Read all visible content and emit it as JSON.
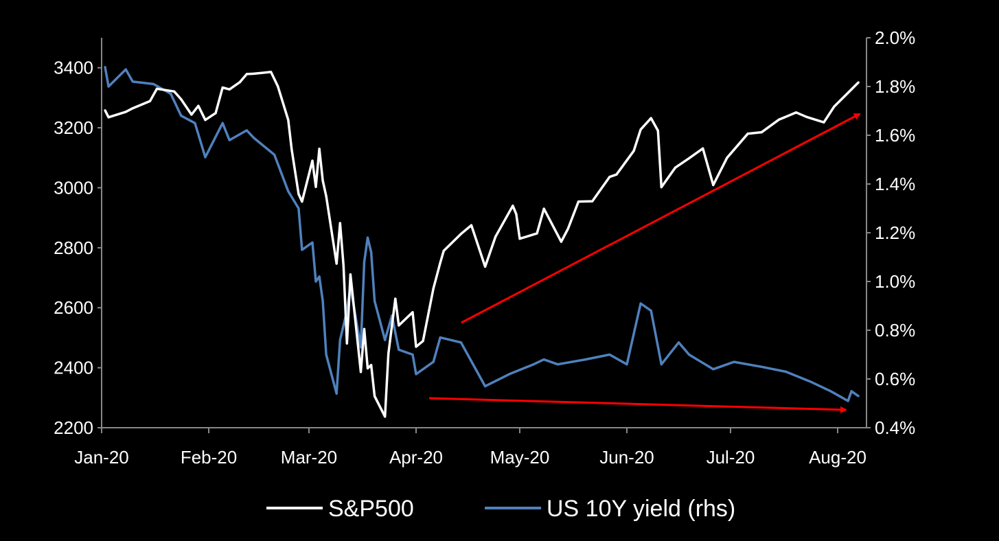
{
  "chart_data": {
    "type": "line",
    "title": "",
    "xlabel": "",
    "ylabel": "",
    "y2label": "",
    "x_ticks": [
      "Jan-20",
      "Feb-20",
      "Mar-20",
      "Apr-20",
      "May-20",
      "Jun-20",
      "Jul-20",
      "Aug-20"
    ],
    "x_tick_dates": [
      "2020-01-01",
      "2020-02-01",
      "2020-03-01",
      "2020-04-01",
      "2020-05-01",
      "2020-06-01",
      "2020-07-01",
      "2020-08-01"
    ],
    "ylim": [
      2200,
      3500
    ],
    "y_ticks": [
      "2200",
      "2400",
      "2600",
      "2800",
      "3000",
      "3200",
      "3400"
    ],
    "y2lim": [
      0.4,
      2.0
    ],
    "y2_ticks": [
      "0.4%",
      "0.6%",
      "0.8%",
      "1.0%",
      "1.2%",
      "1.4%",
      "1.6%",
      "1.8%",
      "2.0%"
    ],
    "grid": false,
    "legend_position": "bottom",
    "background": "#000000",
    "series": [
      {
        "name": "S&P500",
        "axis": "left",
        "color": "#ffffff",
        "points": [
          [
            "2020-01-02",
            3258
          ],
          [
            "2020-01-03",
            3235
          ],
          [
            "2020-01-08",
            3253
          ],
          [
            "2020-01-10",
            3265
          ],
          [
            "2020-01-15",
            3289
          ],
          [
            "2020-01-17",
            3330
          ],
          [
            "2020-01-22",
            3321
          ],
          [
            "2020-01-24",
            3295
          ],
          [
            "2020-01-27",
            3244
          ],
          [
            "2020-01-29",
            3273
          ],
          [
            "2020-01-31",
            3226
          ],
          [
            "2020-02-03",
            3249
          ],
          [
            "2020-02-05",
            3334
          ],
          [
            "2020-02-07",
            3328
          ],
          [
            "2020-02-10",
            3352
          ],
          [
            "2020-02-12",
            3379
          ],
          [
            "2020-02-14",
            3380
          ],
          [
            "2020-02-19",
            3386
          ],
          [
            "2020-02-21",
            3338
          ],
          [
            "2020-02-24",
            3226
          ],
          [
            "2020-02-25",
            3128
          ],
          [
            "2020-02-27",
            2979
          ],
          [
            "2020-02-28",
            2954
          ],
          [
            "2020-03-02",
            3090
          ],
          [
            "2020-03-03",
            3003
          ],
          [
            "2020-03-04",
            3130
          ],
          [
            "2020-03-05",
            3024
          ],
          [
            "2020-03-06",
            2972
          ],
          [
            "2020-03-09",
            2747
          ],
          [
            "2020-03-10",
            2882
          ],
          [
            "2020-03-11",
            2741
          ],
          [
            "2020-03-12",
            2481
          ],
          [
            "2020-03-13",
            2711
          ],
          [
            "2020-03-16",
            2386
          ],
          [
            "2020-03-17",
            2529
          ],
          [
            "2020-03-18",
            2398
          ],
          [
            "2020-03-19",
            2409
          ],
          [
            "2020-03-20",
            2305
          ],
          [
            "2020-03-23",
            2237
          ],
          [
            "2020-03-24",
            2447
          ],
          [
            "2020-03-26",
            2630
          ],
          [
            "2020-03-27",
            2541
          ],
          [
            "2020-03-31",
            2585
          ],
          [
            "2020-04-01",
            2470
          ],
          [
            "2020-04-03",
            2489
          ],
          [
            "2020-04-06",
            2664
          ],
          [
            "2020-04-08",
            2750
          ],
          [
            "2020-04-09",
            2790
          ],
          [
            "2020-04-14",
            2846
          ],
          [
            "2020-04-17",
            2875
          ],
          [
            "2020-04-21",
            2737
          ],
          [
            "2020-04-24",
            2837
          ],
          [
            "2020-04-29",
            2940
          ],
          [
            "2020-04-30",
            2912
          ],
          [
            "2020-05-01",
            2830
          ],
          [
            "2020-05-06",
            2848
          ],
          [
            "2020-05-08",
            2930
          ],
          [
            "2020-05-13",
            2820
          ],
          [
            "2020-05-15",
            2864
          ],
          [
            "2020-05-18",
            2954
          ],
          [
            "2020-05-22",
            2955
          ],
          [
            "2020-05-27",
            3036
          ],
          [
            "2020-05-29",
            3044
          ],
          [
            "2020-06-03",
            3123
          ],
          [
            "2020-06-05",
            3194
          ],
          [
            "2020-06-08",
            3232
          ],
          [
            "2020-06-10",
            3190
          ],
          [
            "2020-06-11",
            3002
          ],
          [
            "2020-06-15",
            3067
          ],
          [
            "2020-06-19",
            3098
          ],
          [
            "2020-06-23",
            3131
          ],
          [
            "2020-06-26",
            3009
          ],
          [
            "2020-06-30",
            3100
          ],
          [
            "2020-07-06",
            3180
          ],
          [
            "2020-07-10",
            3185
          ],
          [
            "2020-07-15",
            3227
          ],
          [
            "2020-07-20",
            3251
          ],
          [
            "2020-07-23",
            3236
          ],
          [
            "2020-07-28",
            3218
          ],
          [
            "2020-07-31",
            3271
          ],
          [
            "2020-08-05",
            3328
          ],
          [
            "2020-08-07",
            3351
          ]
        ]
      },
      {
        "name": "US 10Y yield (rhs)",
        "axis": "right",
        "color": "#4f81bd",
        "points": [
          [
            "2020-01-02",
            1.88
          ],
          [
            "2020-01-03",
            1.8
          ],
          [
            "2020-01-08",
            1.87
          ],
          [
            "2020-01-10",
            1.82
          ],
          [
            "2020-01-16",
            1.81
          ],
          [
            "2020-01-21",
            1.77
          ],
          [
            "2020-01-24",
            1.68
          ],
          [
            "2020-01-28",
            1.65
          ],
          [
            "2020-01-31",
            1.51
          ],
          [
            "2020-02-05",
            1.65
          ],
          [
            "2020-02-07",
            1.58
          ],
          [
            "2020-02-12",
            1.62
          ],
          [
            "2020-02-14",
            1.59
          ],
          [
            "2020-02-20",
            1.52
          ],
          [
            "2020-02-24",
            1.37
          ],
          [
            "2020-02-27",
            1.3
          ],
          [
            "2020-02-28",
            1.13
          ],
          [
            "2020-03-02",
            1.16
          ],
          [
            "2020-03-03",
            1.0
          ],
          [
            "2020-03-04",
            1.02
          ],
          [
            "2020-03-05",
            0.92
          ],
          [
            "2020-03-06",
            0.7
          ],
          [
            "2020-03-09",
            0.54
          ],
          [
            "2020-03-10",
            0.76
          ],
          [
            "2020-03-11",
            0.82
          ],
          [
            "2020-03-12",
            0.88
          ],
          [
            "2020-03-13",
            0.98
          ],
          [
            "2020-03-16",
            0.73
          ],
          [
            "2020-03-17",
            1.08
          ],
          [
            "2020-03-18",
            1.18
          ],
          [
            "2020-03-19",
            1.12
          ],
          [
            "2020-03-20",
            0.92
          ],
          [
            "2020-03-23",
            0.76
          ],
          [
            "2020-03-25",
            0.86
          ],
          [
            "2020-03-27",
            0.72
          ],
          [
            "2020-03-31",
            0.7
          ],
          [
            "2020-04-01",
            0.62
          ],
          [
            "2020-04-06",
            0.67
          ],
          [
            "2020-04-08",
            0.77
          ],
          [
            "2020-04-14",
            0.75
          ],
          [
            "2020-04-21",
            0.57
          ],
          [
            "2020-04-28",
            0.62
          ],
          [
            "2020-05-05",
            0.66
          ],
          [
            "2020-05-08",
            0.68
          ],
          [
            "2020-05-12",
            0.66
          ],
          [
            "2020-05-20",
            0.68
          ],
          [
            "2020-05-27",
            0.7
          ],
          [
            "2020-06-01",
            0.66
          ],
          [
            "2020-06-05",
            0.91
          ],
          [
            "2020-06-08",
            0.88
          ],
          [
            "2020-06-11",
            0.66
          ],
          [
            "2020-06-16",
            0.75
          ],
          [
            "2020-06-19",
            0.7
          ],
          [
            "2020-06-26",
            0.64
          ],
          [
            "2020-07-02",
            0.67
          ],
          [
            "2020-07-10",
            0.65
          ],
          [
            "2020-07-17",
            0.63
          ],
          [
            "2020-07-24",
            0.59
          ],
          [
            "2020-07-30",
            0.55
          ],
          [
            "2020-08-04",
            0.51
          ],
          [
            "2020-08-05",
            0.55
          ],
          [
            "2020-08-07",
            0.53
          ]
        ]
      }
    ],
    "annotations": [
      {
        "type": "arrow",
        "color": "#ff0000",
        "target": "S&P500 uptrend"
      },
      {
        "type": "arrow",
        "color": "#ff0000",
        "target": "US 10Y yield downtrend"
      }
    ]
  }
}
